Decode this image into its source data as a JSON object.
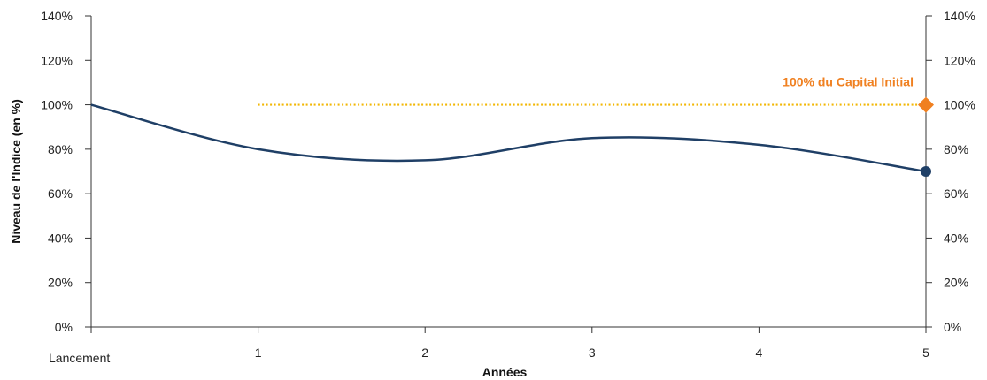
{
  "chart_data": {
    "type": "line",
    "xlabel": "Années",
    "ylabel": "Niveau de l'Indice (en %)",
    "ylim": [
      0,
      140
    ],
    "y_ticks": [
      "0%",
      "20%",
      "40%",
      "60%",
      "80%",
      "100%",
      "120%",
      "140%"
    ],
    "secondary_y_ticks": [
      "0%",
      "20%",
      "40%",
      "60%",
      "80%",
      "100%",
      "120%",
      "140%"
    ],
    "x_ticks": [
      "Lancement",
      "1",
      "2",
      "3",
      "4",
      "5"
    ],
    "series": [
      {
        "x": [
          0,
          1,
          2,
          3,
          4,
          5
        ],
        "values": [
          100,
          80,
          75,
          85,
          82,
          70
        ],
        "color": "#1f3f66",
        "end_marker": "circle"
      }
    ],
    "reference_line": {
      "x_start": 1,
      "x_end": 5,
      "value": 100,
      "color": "#f2b705",
      "style": "dotted"
    },
    "annotation": {
      "text": "100% du Capital Initial",
      "value": 100,
      "x": 5,
      "color": "#f08020",
      "marker": "diamond"
    },
    "grid": false
  }
}
